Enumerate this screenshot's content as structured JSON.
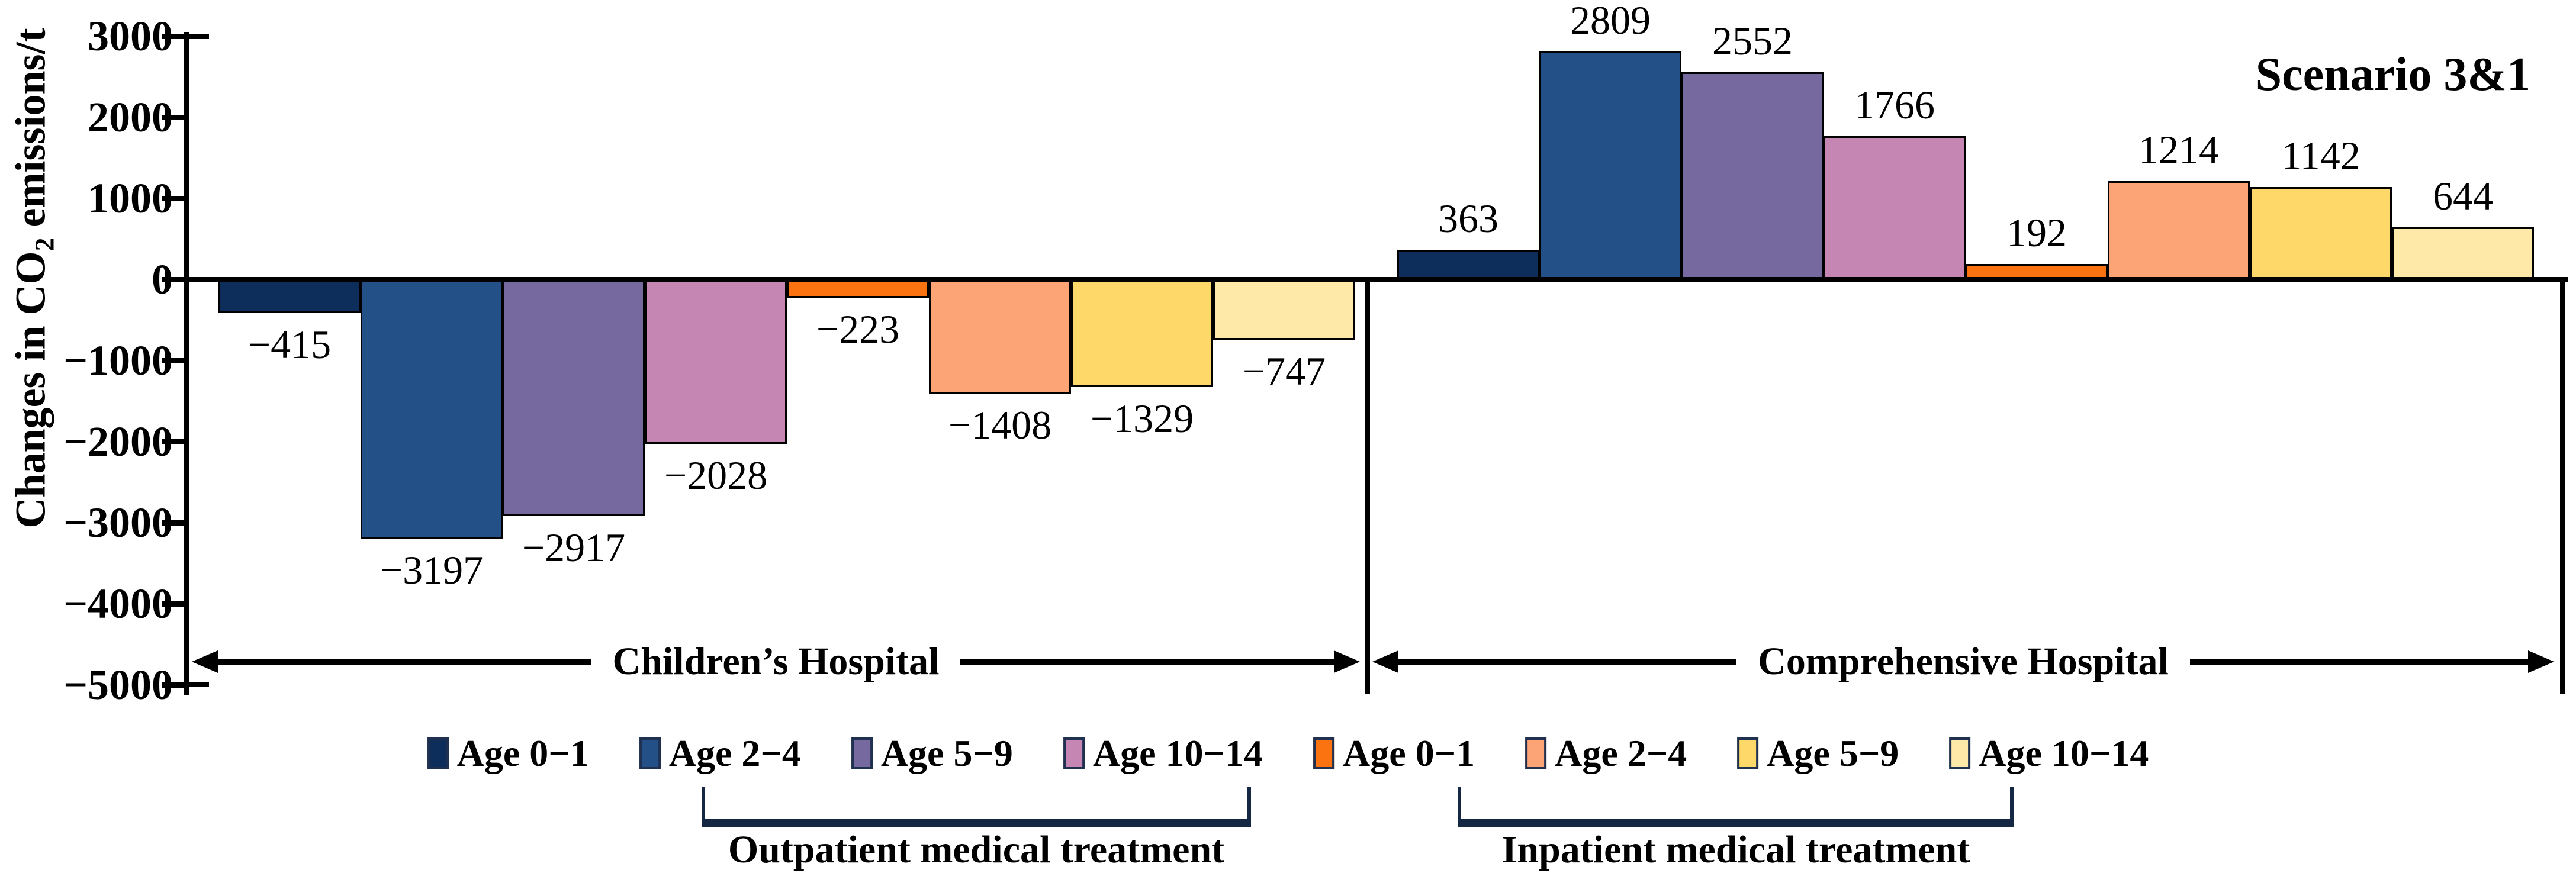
{
  "chart_data": {
    "type": "bar",
    "title": "Scenario 3&1",
    "ylabel": {
      "prefix": "Changes in CO",
      "sub": "2",
      "suffix": " emissions/t"
    },
    "ylim": [
      -5000,
      3000
    ],
    "ytick_interval": 1000,
    "grid": false,
    "legend_position": "bottom",
    "yticks": [
      {
        "value": 3000,
        "label": "3000"
      },
      {
        "value": 2000,
        "label": "2000"
      },
      {
        "value": 1000,
        "label": "1000"
      },
      {
        "value": 0,
        "label": "0"
      },
      {
        "value": -1000,
        "label": "−1000"
      },
      {
        "value": -2000,
        "label": "−2000"
      },
      {
        "value": -3000,
        "label": "−3000"
      },
      {
        "value": -4000,
        "label": "−4000"
      },
      {
        "value": -5000,
        "label": "−5000"
      }
    ],
    "groups": [
      {
        "label": "Children’s Hospital",
        "bars": [
          {
            "treatment": "Outpatient",
            "series": "Age 0−1",
            "value": -415,
            "label": "−415",
            "color": "#0D2E5B"
          },
          {
            "treatment": "Outpatient",
            "series": "Age 2−4",
            "value": -3197,
            "label": "−3197",
            "color": "#235087"
          },
          {
            "treatment": "Outpatient",
            "series": "Age 5−9",
            "value": -2917,
            "label": "−2917",
            "color": "#76699F"
          },
          {
            "treatment": "Outpatient",
            "series": "Age 10−14",
            "value": -2028,
            "label": "−2028",
            "color": "#C686B4"
          },
          {
            "treatment": "Inpatient",
            "series": "Age 0−1",
            "value": -223,
            "label": "−223",
            "color": "#FB7310"
          },
          {
            "treatment": "Inpatient",
            "series": "Age 2−4",
            "value": -1408,
            "label": "−1408",
            "color": "#FCA475"
          },
          {
            "treatment": "Inpatient",
            "series": "Age 5−9",
            "value": -1329,
            "label": "−1329",
            "color": "#FED96A"
          },
          {
            "treatment": "Inpatient",
            "series": "Age 10−14",
            "value": -747,
            "label": "−747",
            "color": "#FEE9A8"
          }
        ]
      },
      {
        "label": "Comprehensive Hospital",
        "bars": [
          {
            "treatment": "Outpatient",
            "series": "Age 0−1",
            "value": 363,
            "label": "363",
            "color": "#0D2E5B"
          },
          {
            "treatment": "Outpatient",
            "series": "Age 2−4",
            "value": 2809,
            "label": "2809",
            "color": "#235087"
          },
          {
            "treatment": "Outpatient",
            "series": "Age 5−9",
            "value": 2552,
            "label": "2552",
            "color": "#76699F"
          },
          {
            "treatment": "Outpatient",
            "series": "Age 10−14",
            "value": 1766,
            "label": "1766",
            "color": "#C686B4"
          },
          {
            "treatment": "Inpatient",
            "series": "Age 0−1",
            "value": 192,
            "label": "192",
            "color": "#FB7310"
          },
          {
            "treatment": "Inpatient",
            "series": "Age 2−4",
            "value": 1214,
            "label": "1214",
            "color": "#FCA475"
          },
          {
            "treatment": "Inpatient",
            "series": "Age 5−9",
            "value": 1142,
            "label": "1142",
            "color": "#FED96A"
          },
          {
            "treatment": "Inpatient",
            "series": "Age 10−14",
            "value": 644,
            "label": "644",
            "color": "#FEE9A8"
          }
        ]
      }
    ],
    "legend": [
      {
        "label": "Age 0−1",
        "color": "#0D2E5B"
      },
      {
        "label": "Age 2−4",
        "color": "#235087"
      },
      {
        "label": "Age 5−9",
        "color": "#76699F"
      },
      {
        "label": "Age 10−14",
        "color": "#C686B4"
      },
      {
        "label": "Age 0−1",
        "color": "#FB7310"
      },
      {
        "label": "Age 2−4",
        "color": "#FCA475"
      },
      {
        "label": "Age 5−9",
        "color": "#FED96A"
      },
      {
        "label": "Age 10−14",
        "color": "#FEE9A8"
      }
    ],
    "legend_groups": [
      {
        "label": "Outpatient medical treatment"
      },
      {
        "label": "Inpatient medical treatment"
      }
    ]
  }
}
